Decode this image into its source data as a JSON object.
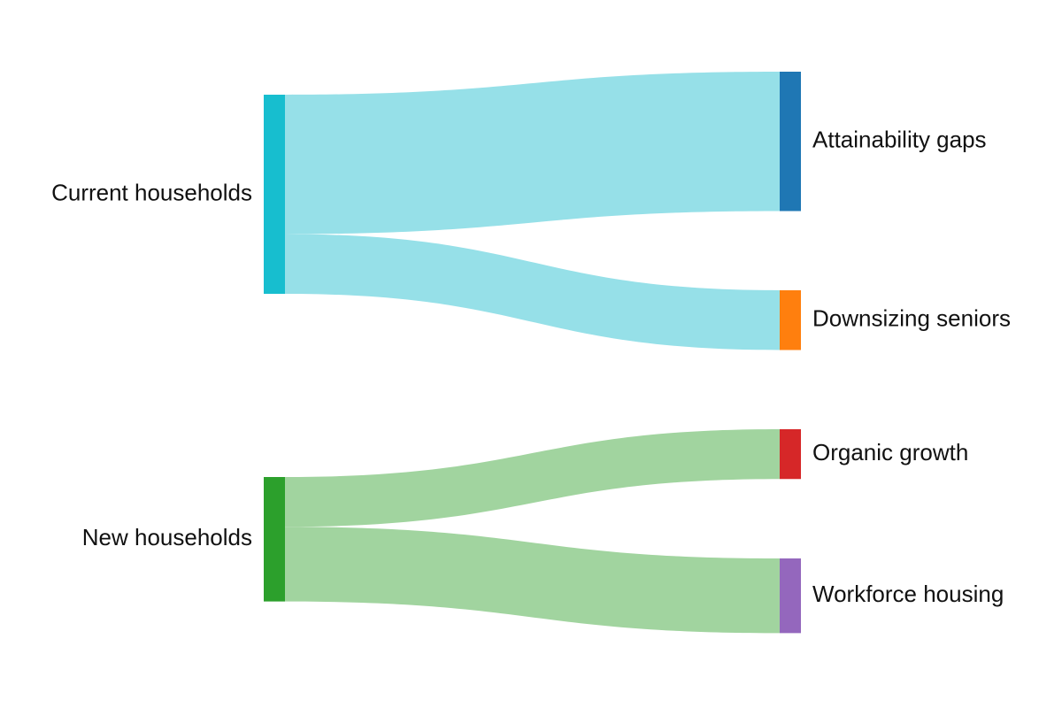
{
  "chart_data": {
    "type": "sankey",
    "nodes": [
      {
        "id": "current",
        "label": "Current households",
        "color": "#17becf",
        "side": "source"
      },
      {
        "id": "new",
        "label": "New households",
        "color": "#2ca02c",
        "side": "source"
      },
      {
        "id": "attain",
        "label": "Attainability gaps",
        "color": "#1f77b4",
        "side": "target"
      },
      {
        "id": "down",
        "label": "Downsizing seniors",
        "color": "#ff7f0e",
        "side": "target"
      },
      {
        "id": "organic",
        "label": "Organic growth",
        "color": "#d62728",
        "side": "target"
      },
      {
        "id": "work",
        "label": "Workforce housing",
        "color": "#9467bd",
        "side": "target"
      }
    ],
    "links": [
      {
        "source": "current",
        "target": "attain",
        "value": 2800,
        "color": "#96e0e8"
      },
      {
        "source": "current",
        "target": "down",
        "value": 1200,
        "color": "#96e0e8"
      },
      {
        "source": "new",
        "target": "organic",
        "value": 1000,
        "color": "#a1d49f"
      },
      {
        "source": "new",
        "target": "work",
        "value": 1500,
        "color": "#a1d49f"
      }
    ]
  }
}
